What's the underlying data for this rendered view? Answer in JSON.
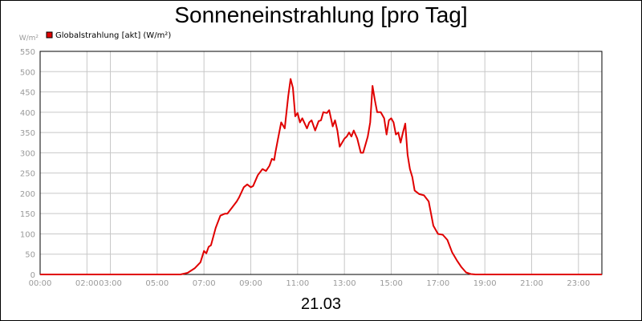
{
  "header": {
    "title": "Sonneneinstrahlung [pro Tag]"
  },
  "footer": {
    "date_label": "21.03"
  },
  "colors": {
    "series": "#e00000",
    "grid": "#c8c8c8",
    "axis_text": "#9a9a9a"
  },
  "chart_data": {
    "type": "line",
    "title": "Sonneneinstrahlung [pro Tag]",
    "ylabel": "W/m²",
    "xlabel": "",
    "ylim": [
      0,
      550
    ],
    "xlim": [
      0,
      24
    ],
    "yticks": [
      0,
      50,
      100,
      150,
      200,
      250,
      300,
      350,
      400,
      450,
      500,
      550
    ],
    "xticks": [
      {
        "value": 0,
        "label": "00:00"
      },
      {
        "value": 2,
        "label": "02:00"
      },
      {
        "value": 3,
        "label": "03:00"
      },
      {
        "value": 5,
        "label": "05:00"
      },
      {
        "value": 7,
        "label": "07:00"
      },
      {
        "value": 9,
        "label": "09:00"
      },
      {
        "value": 11,
        "label": "11:00"
      },
      {
        "value": 13,
        "label": "13:00"
      },
      {
        "value": 15,
        "label": "15:00"
      },
      {
        "value": 17,
        "label": "17:00"
      },
      {
        "value": 19,
        "label": "19:00"
      },
      {
        "value": 21,
        "label": "21:00"
      },
      {
        "value": 23,
        "label": "23:00"
      }
    ],
    "vertical_grid_hours": [
      0,
      2,
      3,
      5,
      7,
      9,
      11,
      13,
      15,
      17,
      19,
      21,
      23
    ],
    "grid": true,
    "legend_position": "top-left",
    "series": [
      {
        "name": "Globalstrahlung [akt] (W/m²)",
        "color": "#e00000",
        "x": [
          0,
          6.0,
          6.3,
          6.6,
          6.85,
          7.0,
          7.1,
          7.2,
          7.3,
          7.5,
          7.7,
          7.9,
          8.0,
          8.2,
          8.4,
          8.5,
          8.7,
          8.85,
          9.0,
          9.1,
          9.3,
          9.5,
          9.65,
          9.8,
          9.9,
          10.0,
          10.05,
          10.15,
          10.3,
          10.45,
          10.6,
          10.7,
          10.8,
          10.9,
          11.0,
          11.1,
          11.2,
          11.4,
          11.5,
          11.6,
          11.75,
          11.9,
          12.0,
          12.1,
          12.25,
          12.35,
          12.5,
          12.6,
          12.7,
          12.8,
          12.9,
          13.0,
          13.1,
          13.2,
          13.3,
          13.4,
          13.55,
          13.7,
          13.8,
          13.9,
          14.0,
          14.1,
          14.2,
          14.3,
          14.4,
          14.5,
          14.55,
          14.7,
          14.8,
          14.9,
          15.0,
          15.1,
          15.2,
          15.3,
          15.4,
          15.5,
          15.6,
          15.7,
          15.8,
          15.9,
          16.0,
          16.2,
          16.4,
          16.6,
          16.8,
          17.0,
          17.2,
          17.4,
          17.6,
          17.8,
          18.0,
          18.2,
          18.4,
          18.6,
          18.8,
          24
        ],
        "values": [
          0,
          0,
          4,
          15,
          30,
          58,
          52,
          68,
          72,
          115,
          145,
          150,
          150,
          165,
          180,
          190,
          215,
          222,
          215,
          218,
          245,
          260,
          255,
          268,
          285,
          282,
          300,
          330,
          375,
          360,
          440,
          482,
          460,
          390,
          398,
          375,
          385,
          360,
          375,
          380,
          355,
          378,
          380,
          400,
          398,
          405,
          365,
          380,
          355,
          315,
          325,
          335,
          340,
          350,
          340,
          355,
          335,
          300,
          300,
          320,
          340,
          375,
          465,
          430,
          400,
          400,
          400,
          385,
          345,
          380,
          385,
          375,
          345,
          350,
          325,
          350,
          372,
          295,
          260,
          240,
          207,
          198,
          195,
          180,
          120,
          100,
          98,
          85,
          55,
          35,
          18,
          5,
          1,
          0,
          0,
          0
        ]
      }
    ]
  }
}
